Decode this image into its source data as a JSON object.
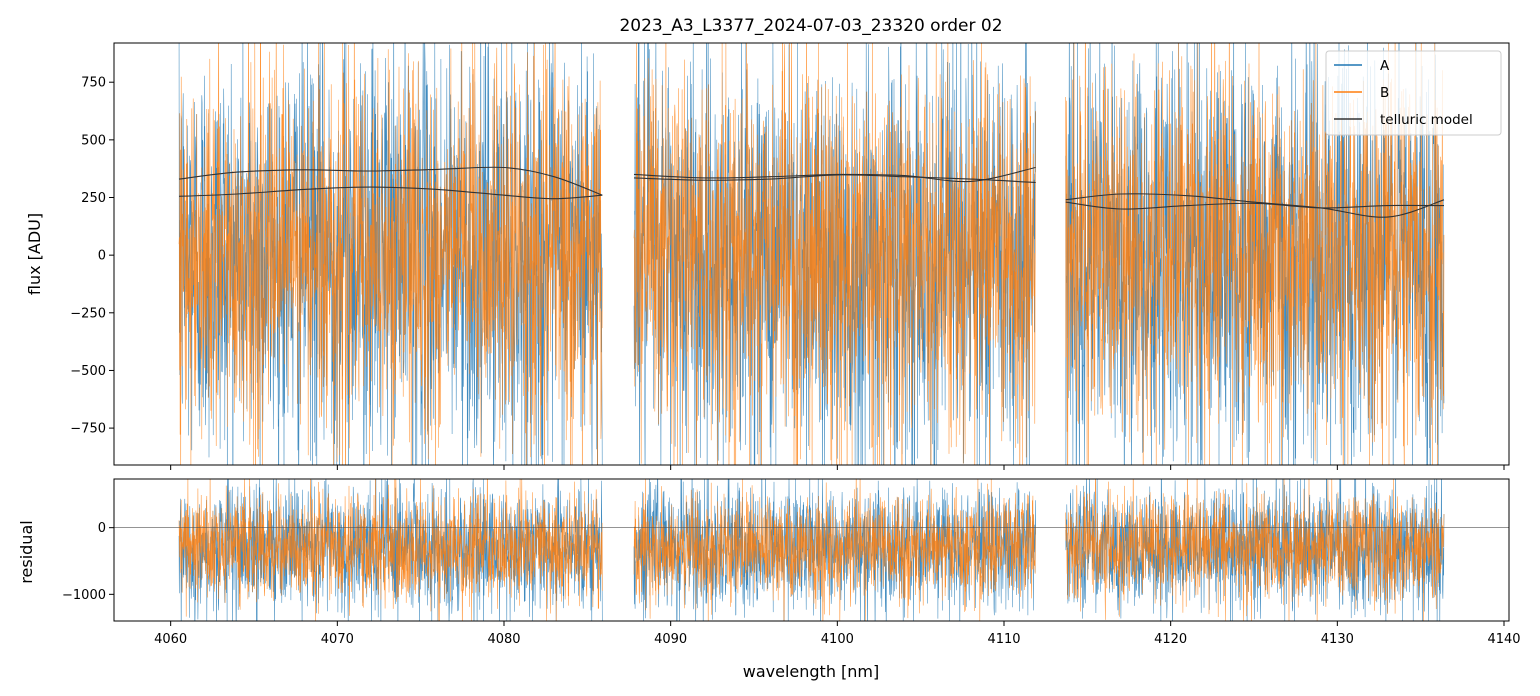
{
  "figure": {
    "title": "2023_A3_L3377_2024-07-03_23320  order 02"
  },
  "chart_data": [
    {
      "type": "line",
      "panel": "flux",
      "title": "2023_A3_L3377_2024-07-03_23320  order 02",
      "xlabel": "",
      "ylabel": "flux [ADU]",
      "xlim": [
        4056.6,
        4140.3
      ],
      "ylim": [
        -910,
        920
      ],
      "grid": false,
      "legend_position": "top-right",
      "xticks": [
        4060,
        4070,
        4080,
        4090,
        4100,
        4110,
        4120,
        4130,
        4140
      ],
      "xtick_labels_shown": false,
      "yticks": [
        -750,
        -500,
        -250,
        0,
        250,
        500,
        750
      ],
      "ytick_labels": [
        "−750",
        "−500",
        "−250",
        "0",
        "250",
        "500",
        "750"
      ],
      "segments": [
        [
          4060.5,
          4085.9
        ],
        [
          4087.8,
          4111.9
        ],
        [
          4113.7,
          4136.4
        ]
      ],
      "legend": [
        {
          "label": "A",
          "color": "#1f77b4"
        },
        {
          "label": "B",
          "color": "#ff7f0e"
        },
        {
          "label": "telluric model",
          "color": "#333333"
        }
      ],
      "series": [
        {
          "name": "A",
          "color": "#1f77b4",
          "noise_sd": 460,
          "offset": 0
        },
        {
          "name": "B",
          "color": "#ff7f0e",
          "noise_sd": 400,
          "offset": 0
        },
        {
          "name": "telluric model",
          "color": "#333333",
          "curves": [
            {
              "x": [
                4060.5,
                4064,
                4068,
                4072,
                4076,
                4080,
                4083,
                4085.9
              ],
              "y": [
                330,
                360,
                370,
                365,
                372,
                380,
                340,
                260
              ]
            },
            {
              "x": [
                4060.5,
                4064,
                4068,
                4072,
                4076,
                4080,
                4083,
                4085.9
              ],
              "y": [
                255,
                265,
                285,
                295,
                285,
                260,
                245,
                260
              ]
            },
            {
              "x": [
                4087.8,
                4092,
                4096,
                4100,
                4104,
                4108,
                4111.9
              ],
              "y": [
                350,
                335,
                340,
                350,
                345,
                320,
                380
              ]
            },
            {
              "x": [
                4087.8,
                4092,
                4096,
                4100,
                4104,
                4108,
                4111.9
              ],
              "y": [
                335,
                325,
                330,
                348,
                340,
                330,
                315
              ]
            },
            {
              "x": [
                4113.7,
                4117,
                4121,
                4125,
                4129,
                4133,
                4136.4
              ],
              "y": [
                240,
                265,
                258,
                230,
                205,
                165,
                240
              ]
            },
            {
              "x": [
                4113.7,
                4117,
                4121,
                4125,
                4129,
                4133,
                4136.4
              ],
              "y": [
                230,
                200,
                215,
                225,
                205,
                215,
                215
              ]
            }
          ]
        }
      ]
    },
    {
      "type": "line",
      "panel": "residual",
      "xlabel": "wavelength [nm]",
      "ylabel": "residual",
      "xlim": [
        4056.6,
        4140.3
      ],
      "ylim": [
        -1400,
        730
      ],
      "grid": false,
      "xticks": [
        4060,
        4070,
        4080,
        4090,
        4100,
        4110,
        4120,
        4130,
        4140
      ],
      "xtick_labels": [
        "4060",
        "4070",
        "4080",
        "4090",
        "4100",
        "4110",
        "4120",
        "4130",
        "4140"
      ],
      "yticks": [
        -1000,
        0
      ],
      "ytick_labels": [
        "−1000",
        "0"
      ],
      "reference_line_y": 0,
      "segments": [
        [
          4060.5,
          4085.9
        ],
        [
          4087.8,
          4111.9
        ],
        [
          4113.7,
          4136.4
        ]
      ],
      "series": [
        {
          "name": "A",
          "color": "#1f77b4",
          "noise_sd": 480,
          "offset": -300
        },
        {
          "name": "B",
          "color": "#ff7f0e",
          "noise_sd": 400,
          "offset": -300
        }
      ]
    }
  ]
}
